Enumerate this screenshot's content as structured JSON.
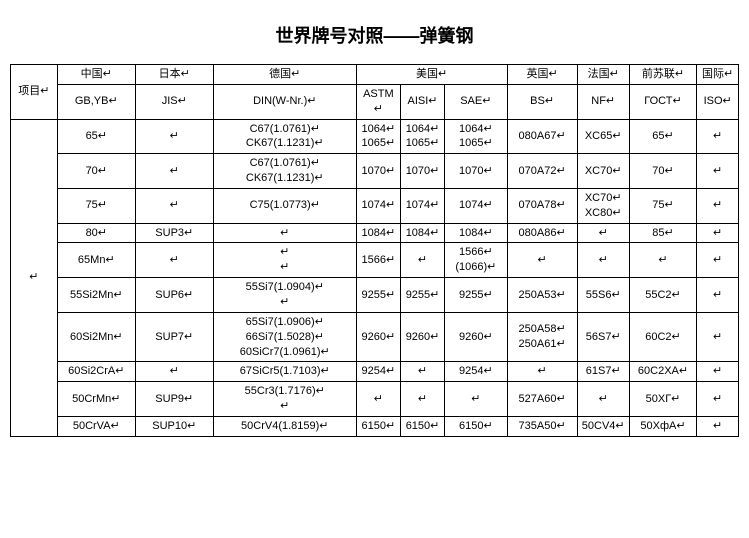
{
  "title": "世界牌号对照——弹簧钢",
  "header": {
    "row1": [
      "项目↵",
      "中国↵",
      "日本↵",
      "德国↵",
      "美国↵",
      "英国↵",
      "法国↵",
      "前苏联↵",
      "国际↵"
    ],
    "row2": [
      "GB,YB↵",
      "JIS↵",
      "DIN(W-Nr.)↵",
      "ASTM↵",
      "AISI↵",
      "SAE↵",
      "BS↵",
      "NF↵",
      "ГОСТ↵",
      "ISO↵"
    ]
  },
  "rowgroup_label": "↵",
  "rows": [
    [
      "65↵",
      "↵",
      "C67(1.0761)↵\nCK67(1.1231)↵",
      "1064↵\n1065↵",
      "1064↵\n1065↵",
      "1064↵\n1065↵",
      "080A67↵",
      "XC65↵",
      "65↵",
      "↵"
    ],
    [
      "70↵",
      "↵",
      "C67(1.0761)↵\nCK67(1.1231)↵",
      "1070↵",
      "1070↵",
      "1070↵",
      "070A72↵",
      "XC70↵",
      "70↵",
      "↵"
    ],
    [
      "75↵",
      "↵",
      "C75(1.0773)↵",
      "1074↵",
      "1074↵",
      "1074↵",
      "070A78↵",
      "XC70↵\nXC80↵",
      "75↵",
      "↵"
    ],
    [
      "80↵",
      "SUP3↵",
      "↵",
      "1084↵",
      "1084↵",
      "1084↵",
      "080A86↵",
      "↵",
      "85↵",
      "↵"
    ],
    [
      "65Mn↵",
      "↵",
      "↵\n↵",
      "1566↵",
      "↵",
      "1566↵\n(1066)↵",
      "↵",
      "↵",
      "↵",
      "↵"
    ],
    [
      "55Si2Mn↵",
      "SUP6↵",
      "55Si7(1.0904)↵\n↵",
      "9255↵",
      "9255↵",
      "9255↵",
      "250A53↵",
      "55S6↵",
      "55C2↵",
      "↵"
    ],
    [
      "60Si2Mn↵",
      "SUP7↵",
      "65Si7(1.0906)↵\n66Si7(1.5028)↵\n60SiCr7(1.0961)↵",
      "9260↵",
      "9260↵",
      "9260↵",
      "250A58↵\n250A61↵",
      "56S7↵",
      "60C2↵",
      "↵"
    ],
    [
      "60Si2CrA↵",
      "↵",
      "67SiCr5(1.7103)↵",
      "9254↵",
      "↵",
      "9254↵",
      "↵",
      "61S7↵",
      "60C2XA↵",
      "↵"
    ],
    [
      "50CrMn↵",
      "SUP9↵",
      "55Cr3(1.7176)↵\n↵",
      "↵",
      "↵",
      "↵",
      "527A60↵",
      "↵",
      "50XГ↵",
      "↵"
    ],
    [
      "50CrVA↵",
      "SUP10↵",
      "50CrV4(1.8159)↵",
      "6150↵",
      "6150↵",
      "6150↵",
      "735A50↵",
      "50CV4↵",
      "50XфA↵",
      "↵"
    ]
  ]
}
